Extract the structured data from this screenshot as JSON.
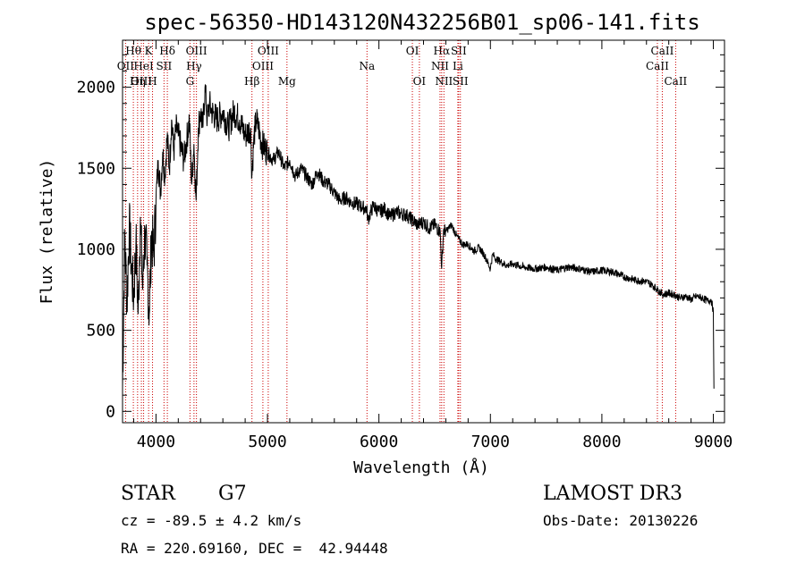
{
  "chart_data": {
    "type": "line",
    "title": "spec-56350-HD143120N432256B01_sp06-141.fits",
    "xlabel": "Wavelength (Å)",
    "ylabel": "Flux (relative)",
    "xlim": [
      3700,
      9100
    ],
    "ylim": [
      -70,
      2290
    ],
    "xticks": [
      4000,
      5000,
      6000,
      7000,
      8000,
      9000
    ],
    "yticks": [
      0,
      500,
      1000,
      1500,
      2000
    ],
    "grid": false,
    "series": [
      {
        "name": "flux",
        "x": [
          3700,
          3720,
          3740,
          3760,
          3780,
          3800,
          3820,
          3840,
          3860,
          3880,
          3900,
          3920,
          3940,
          3960,
          3980,
          4000,
          4020,
          4040,
          4060,
          4080,
          4100,
          4120,
          4140,
          4160,
          4180,
          4200,
          4250,
          4300,
          4320,
          4340,
          4360,
          4380,
          4400,
          4420,
          4440,
          4460,
          4480,
          4500,
          4550,
          4600,
          4650,
          4700,
          4750,
          4800,
          4850,
          4860,
          4880,
          4900,
          4920,
          4950,
          5000,
          5050,
          5100,
          5150,
          5200,
          5250,
          5300,
          5350,
          5400,
          5450,
          5500,
          5550,
          5600,
          5650,
          5700,
          5750,
          5800,
          5850,
          5890,
          5900,
          5950,
          6000,
          6050,
          6100,
          6150,
          6200,
          6250,
          6300,
          6350,
          6400,
          6450,
          6500,
          6550,
          6563,
          6580,
          6600,
          6650,
          6700,
          6750,
          6800,
          6850,
          6900,
          6950,
          7000,
          7020,
          7050,
          7100,
          7150,
          7200,
          7300,
          7400,
          7500,
          7600,
          7700,
          7800,
          7900,
          8000,
          8100,
          8200,
          8300,
          8400,
          8450,
          8500,
          8550,
          8600,
          8650,
          8700,
          8750,
          8800,
          8850,
          8900,
          8950,
          8980,
          9000,
          9005
        ],
        "values": [
          150,
          1100,
          650,
          1150,
          900,
          700,
          1050,
          600,
          1200,
          750,
          1100,
          900,
          600,
          1100,
          950,
          1300,
          1550,
          1350,
          1600,
          1450,
          1700,
          1500,
          1800,
          1600,
          1750,
          1700,
          1550,
          1800,
          1400,
          1650,
          1300,
          1750,
          1850,
          1750,
          2000,
          1800,
          1900,
          1850,
          1800,
          1850,
          1750,
          1850,
          1800,
          1700,
          1750,
          1450,
          1700,
          1800,
          1750,
          1650,
          1600,
          1550,
          1600,
          1500,
          1550,
          1450,
          1500,
          1450,
          1400,
          1480,
          1420,
          1400,
          1350,
          1300,
          1320,
          1290,
          1280,
          1260,
          1250,
          1180,
          1270,
          1230,
          1250,
          1200,
          1230,
          1220,
          1210,
          1180,
          1150,
          1170,
          1130,
          1150,
          1110,
          880,
          1120,
          1110,
          1150,
          1080,
          1030,
          1030,
          990,
          1010,
          960,
          880,
          970,
          940,
          920,
          900,
          910,
          890,
          880,
          890,
          870,
          890,
          880,
          860,
          870,
          860,
          830,
          810,
          800,
          780,
          750,
          720,
          730,
          720,
          700,
          710,
          690,
          710,
          700,
          680,
          690,
          620,
          140
        ]
      }
    ],
    "line_markers": [
      {
        "label": "Hθ",
        "wave": 3797,
        "row": 1
      },
      {
        "label": "OII",
        "wave": 3727,
        "row": 2
      },
      {
        "label": "OIII",
        "wave": 3869,
        "row": 3
      },
      {
        "label": "K",
        "wave": 3934,
        "row": 1
      },
      {
        "label": "HeI",
        "wave": 3889,
        "row": 2
      },
      {
        "label": "Hη",
        "wave": 3835,
        "row": 3
      },
      {
        "label": "SII",
        "wave": 4072,
        "row": 2
      },
      {
        "label": "H",
        "wave": 3969,
        "row": 3
      },
      {
        "label": "Hδ",
        "wave": 4102,
        "row": 1
      },
      {
        "label": "OIII",
        "wave": 4363,
        "row": 1
      },
      {
        "label": "Hγ",
        "wave": 4341,
        "row": 2
      },
      {
        "label": "G",
        "wave": 4305,
        "row": 3
      },
      {
        "label": "Hβ",
        "wave": 4861,
        "row": 3
      },
      {
        "label": "OIII",
        "wave": 5007,
        "row": 1
      },
      {
        "label": "OIII",
        "wave": 4959,
        "row": 2
      },
      {
        "label": "Mg",
        "wave": 5175,
        "row": 3
      },
      {
        "label": "Na",
        "wave": 5893,
        "row": 2
      },
      {
        "label": "OI",
        "wave": 6300,
        "row": 1
      },
      {
        "label": "OI",
        "wave": 6363,
        "row": 3
      },
      {
        "label": "Hα",
        "wave": 6563,
        "row": 1
      },
      {
        "label": "NII",
        "wave": 6548,
        "row": 2
      },
      {
        "label": "NII",
        "wave": 6583,
        "row": 3
      },
      {
        "label": "SII",
        "wave": 6716,
        "row": 1
      },
      {
        "label": "Li",
        "wave": 6708,
        "row": 2
      },
      {
        "label": "SII",
        "wave": 6731,
        "row": 3
      },
      {
        "label": "CaII",
        "wave": 8542,
        "row": 1
      },
      {
        "label": "CaII",
        "wave": 8498,
        "row": 2
      },
      {
        "label": "CaII",
        "wave": 8662,
        "row": 3
      }
    ],
    "marker_color": "#cc0000"
  },
  "info": {
    "object_class": "STAR",
    "subclass": "G7",
    "survey": "LAMOST DR3",
    "redshift_line": "cz = -89.5 ± 4.2 km/s",
    "obs_date": "Obs-Date: 20130226",
    "coords": "RA = 220.69160, DEC =  42.94448"
  }
}
